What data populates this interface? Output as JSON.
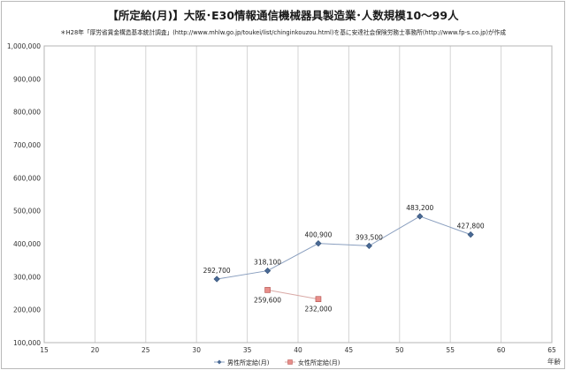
{
  "chart_data": {
    "type": "line",
    "title": "【所定給(月)】大阪･E30情報通信機械器具製造業･人数規模10～99人",
    "subtitle": "＊H28年「厚労省賃金構造基本統計調査」(http://www.mhlw.go.jp/toukei/list/chinginkouzou.html)を基に安達社会保険労務士事務所(http://www.fp-s.co.jp)が作成",
    "xlabel": "年齢",
    "ylabel": "",
    "xlim": [
      15,
      65
    ],
    "ylim": [
      100000,
      1000000
    ],
    "xticks": [
      15,
      20,
      25,
      30,
      35,
      40,
      45,
      50,
      55,
      60,
      65
    ],
    "yticks": [
      100000,
      200000,
      300000,
      400000,
      500000,
      600000,
      700000,
      800000,
      900000,
      1000000
    ],
    "xtick_labels": [
      "15",
      "20",
      "25",
      "30",
      "35",
      "40",
      "45",
      "50",
      "55",
      "60",
      "65"
    ],
    "ytick_labels": [
      "100,000",
      "200,000",
      "300,000",
      "400,000",
      "500,000",
      "600,000",
      "700,000",
      "800,000",
      "900,000",
      "1,000,000"
    ],
    "grid": "vertical",
    "legend_position": "bottom",
    "series": [
      {
        "name": "男性所定給(月)",
        "color": "#4a6a95",
        "marker": "diamond",
        "x": [
          32,
          37,
          42,
          47,
          52,
          57
        ],
        "y": [
          292700,
          318100,
          400900,
          393500,
          483200,
          427800
        ],
        "labels": [
          "292,700",
          "318,100",
          "400,900",
          "393,500",
          "483,200",
          "427,800"
        ]
      },
      {
        "name": "女性所定給(月)",
        "color": "#d9736f",
        "marker": "square",
        "x": [
          37,
          42
        ],
        "y": [
          259600,
          232000
        ],
        "labels": [
          "259,600",
          "232,000"
        ]
      }
    ]
  }
}
